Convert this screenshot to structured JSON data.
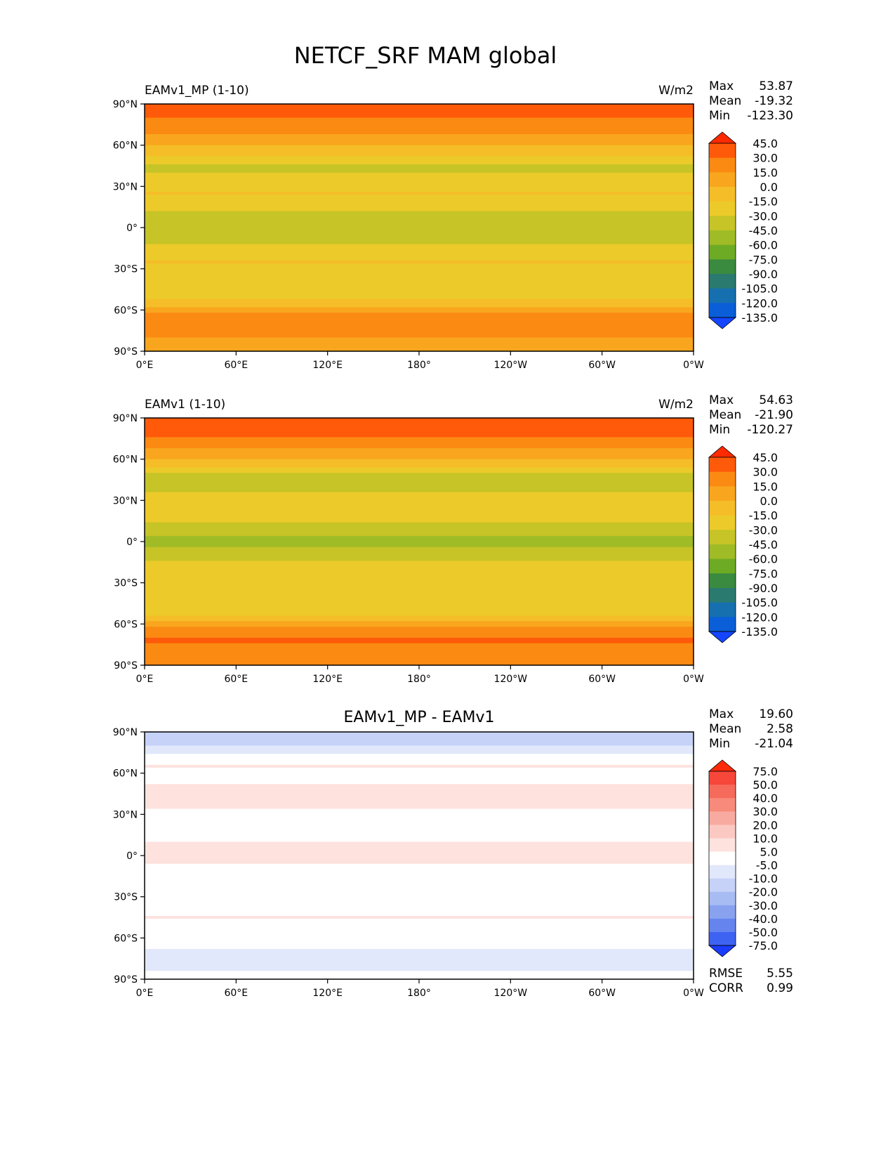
{
  "figure_title": "NETCF_SRF MAM global",
  "chart_data": [
    {
      "type": "heatmap",
      "panel": "test",
      "title_left": "EAMv1_MP (1-10)",
      "units": "W/m2",
      "stats": [
        {
          "label": "Max",
          "value": "53.87"
        },
        {
          "label": "Mean",
          "value": "-19.32"
        },
        {
          "label": "Min",
          "value": "-123.30"
        }
      ],
      "x_ticks": [
        "0°E",
        "60°E",
        "120°E",
        "180°",
        "120°W",
        "60°W",
        "0°W"
      ],
      "y_ticks": [
        "90°N",
        "60°N",
        "30°N",
        "0°",
        "30°S",
        "60°S",
        "90°S"
      ],
      "xlim_lon": [
        0,
        360
      ],
      "ylim_lat": [
        -90,
        90
      ],
      "colorbar": {
        "levels": [
          "45.0",
          "30.0",
          "15.0",
          "0.0",
          "-15.0",
          "-30.0",
          "-45.0",
          "-60.0",
          "-75.0",
          "-90.0",
          "-105.0",
          "-120.0",
          "-135.0"
        ],
        "colors": [
          "#ff2a00",
          "#ff5a0a",
          "#fb8a12",
          "#f9a61e",
          "#f5bd28",
          "#ecca2a",
          "#c6c426",
          "#9fbb26",
          "#6dab24",
          "#3a8a40",
          "#2a7a70",
          "#1670b0",
          "#0a5ed8",
          "#1446ff"
        ]
      },
      "zonal_profile": {
        "lat": [
          90,
          80,
          70,
          62,
          55,
          45,
          35,
          25,
          15,
          5,
          0,
          -5,
          -15,
          -25,
          -35,
          -45,
          -55,
          -62,
          -67,
          -72,
          -80,
          -90
        ],
        "value": [
          35,
          30,
          20,
          5,
          -10,
          -35,
          -25,
          -15,
          -25,
          -40,
          -45,
          -40,
          -25,
          -15,
          -20,
          -25,
          -10,
          15,
          25,
          30,
          15,
          10
        ]
      }
    },
    {
      "type": "heatmap",
      "panel": "reference",
      "title_left": "EAMv1 (1-10)",
      "units": "W/m2",
      "stats": [
        {
          "label": "Max",
          "value": "54.63"
        },
        {
          "label": "Mean",
          "value": "-21.90"
        },
        {
          "label": "Min",
          "value": "-120.27"
        }
      ],
      "x_ticks": [
        "0°E",
        "60°E",
        "120°E",
        "180°",
        "120°W",
        "60°W",
        "0°W"
      ],
      "y_ticks": [
        "90°N",
        "60°N",
        "30°N",
        "0°",
        "30°S",
        "60°S",
        "90°S"
      ],
      "xlim_lon": [
        0,
        360
      ],
      "ylim_lat": [
        -90,
        90
      ],
      "colorbar": {
        "levels": [
          "45.0",
          "30.0",
          "15.0",
          "0.0",
          "-15.0",
          "-30.0",
          "-45.0",
          "-60.0",
          "-75.0",
          "-90.0",
          "-105.0",
          "-120.0",
          "-135.0"
        ],
        "colors": [
          "#ff2a00",
          "#ff5a0a",
          "#fb8a12",
          "#f9a61e",
          "#f5bd28",
          "#ecca2a",
          "#c6c426",
          "#9fbb26",
          "#6dab24",
          "#3a8a40",
          "#2a7a70",
          "#1670b0",
          "#0a5ed8",
          "#1446ff"
        ]
      },
      "zonal_profile": {
        "lat": [
          90,
          80,
          70,
          62,
          55,
          45,
          35,
          25,
          15,
          5,
          0,
          -5,
          -15,
          -25,
          -35,
          -45,
          -55,
          -62,
          -67,
          -72,
          -80,
          -90
        ],
        "value": [
          45,
          35,
          20,
          5,
          -15,
          -45,
          -30,
          -20,
          -30,
          -45,
          -50,
          -45,
          -30,
          -18,
          -22,
          -30,
          -15,
          15,
          25,
          35,
          20,
          15
        ]
      }
    },
    {
      "type": "heatmap",
      "panel": "difference",
      "title_center": "EAMv1_MP - EAMv1",
      "stats": [
        {
          "label": "Max",
          "value": "19.60"
        },
        {
          "label": "Mean",
          "value": "2.58"
        },
        {
          "label": "Min",
          "value": "-21.04"
        }
      ],
      "metrics": [
        {
          "label": "RMSE",
          "value": "5.55"
        },
        {
          "label": "CORR",
          "value": "0.99"
        }
      ],
      "x_ticks": [
        "0°E",
        "60°E",
        "120°E",
        "180°",
        "120°W",
        "60°W",
        "0°W"
      ],
      "y_ticks": [
        "90°N",
        "60°N",
        "30°N",
        "0°",
        "30°S",
        "60°S",
        "90°S"
      ],
      "xlim_lon": [
        0,
        360
      ],
      "ylim_lat": [
        -90,
        90
      ],
      "colorbar": {
        "levels": [
          "75.0",
          "50.0",
          "40.0",
          "30.0",
          "20.0",
          "10.0",
          "5.0",
          "-5.0",
          "-10.0",
          "-20.0",
          "-30.0",
          "-40.0",
          "-50.0",
          "-75.0"
        ],
        "colors": [
          "#ff2a0a",
          "#f7463a",
          "#f56a5a",
          "#f78a7a",
          "#f9aaa0",
          "#fbc8c2",
          "#fde2de",
          "#ffffff",
          "#e2e8fb",
          "#c6d2f8",
          "#a8bcf4",
          "#88a2f0",
          "#6684ee",
          "#3e62f2",
          "#1a3cff"
        ]
      },
      "zonal_profile": {
        "lat": [
          90,
          80,
          72,
          65,
          55,
          45,
          35,
          25,
          15,
          5,
          0,
          -5,
          -15,
          -25,
          -35,
          -45,
          -55,
          -62,
          -68,
          -75,
          -82,
          -90
        ],
        "value": [
          -12,
          -10,
          -4,
          5,
          4,
          7,
          5,
          2,
          4,
          6,
          7,
          5,
          3,
          2,
          3,
          5,
          3,
          1,
          -5,
          -8,
          -6,
          -3
        ]
      }
    }
  ]
}
